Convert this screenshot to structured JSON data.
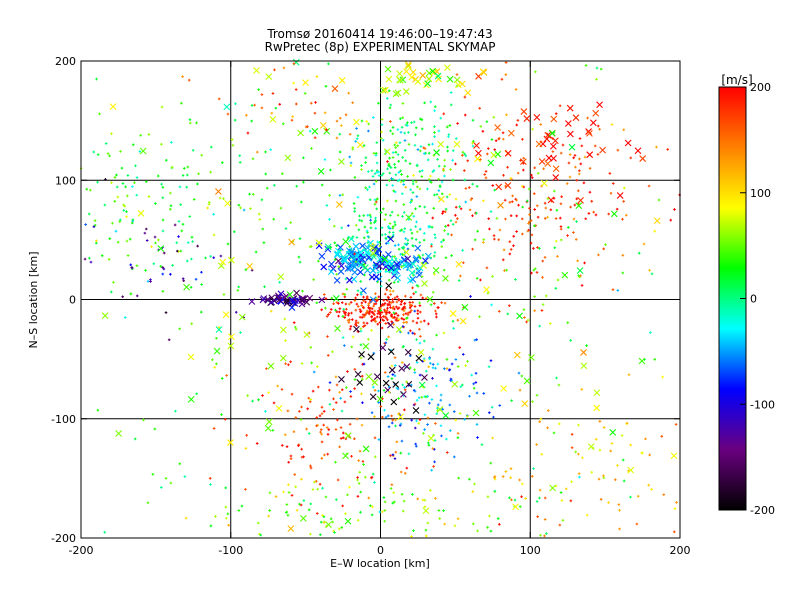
{
  "chart_data": {
    "type": "scatter",
    "title": "Tromsø 20160414 19:46:00–19:47:43",
    "subtitle": "RwPretec (8p) EXPERIMENTAL SKYMAP",
    "xlabel": "E–W location [km]",
    "ylabel": "N–S location [km]",
    "xlim": [
      -200,
      200
    ],
    "ylim": [
      -200,
      200
    ],
    "x_ticks": [
      "-200",
      "-100",
      "0",
      "100",
      "200"
    ],
    "y_ticks": [
      "-200",
      "-100",
      "0",
      "100",
      "200"
    ],
    "grid": true,
    "grid_lines": [
      -100,
      0,
      100
    ],
    "colorbar": {
      "label": "[m/s]",
      "min": -200,
      "max": 200,
      "ticks": [
        "-200",
        "-100",
        "0",
        "100",
        "200"
      ],
      "colormap": [
        "#000000",
        "#6a0080",
        "#0000ff",
        "#00ffff",
        "#00ff00",
        "#ffff00",
        "#ff8000",
        "#ff0000"
      ]
    },
    "clusters": [
      {
        "cx": 0,
        "cy": -10,
        "sx": 18,
        "sy": 8,
        "v": 190,
        "n": 260,
        "marker": "plus"
      },
      {
        "cx": 5,
        "cy": 45,
        "sx": 20,
        "sy": 20,
        "v": 10,
        "n": 220,
        "marker": "plus"
      },
      {
        "cx": 15,
        "cy": 120,
        "sx": 22,
        "sy": 25,
        "v": 10,
        "n": 200,
        "marker": "plus"
      },
      {
        "cx": -20,
        "cy": 35,
        "sx": 8,
        "sy": 6,
        "v": -50,
        "n": 60,
        "marker": "x"
      },
      {
        "cx": 5,
        "cy": 30,
        "sx": 12,
        "sy": 8,
        "v": -60,
        "n": 70,
        "marker": "x"
      },
      {
        "cx": 100,
        "cy": 80,
        "sx": 40,
        "sy": 40,
        "v": 175,
        "n": 230,
        "marker": "plus"
      },
      {
        "cx": 110,
        "cy": 130,
        "sx": 30,
        "sy": 20,
        "v": 180,
        "n": 45,
        "marker": "x"
      },
      {
        "cx": -150,
        "cy": 80,
        "sx": 40,
        "sy": 40,
        "v": 30,
        "n": 150,
        "marker": "plus"
      },
      {
        "cx": -150,
        "cy": 30,
        "sx": 30,
        "sy": 25,
        "v": -120,
        "n": 40,
        "marker": "plus"
      },
      {
        "cx": -60,
        "cy": 0,
        "sx": 12,
        "sy": 2,
        "v": -140,
        "n": 45,
        "marker": "x"
      },
      {
        "cx": -30,
        "cy": -110,
        "sx": 30,
        "sy": 30,
        "v": 170,
        "n": 140,
        "marker": "plus"
      },
      {
        "cx": 30,
        "cy": -80,
        "sx": 25,
        "sy": 25,
        "v": -60,
        "n": 130,
        "marker": "plus"
      },
      {
        "cx": 0,
        "cy": -60,
        "sx": 15,
        "sy": 20,
        "v": -200,
        "n": 25,
        "marker": "x"
      },
      {
        "cx": -20,
        "cy": -180,
        "sx": 55,
        "sy": 20,
        "v": 60,
        "n": 120,
        "marker": "plus"
      },
      {
        "cx": 130,
        "cy": -150,
        "sx": 40,
        "sy": 35,
        "v": 120,
        "n": 90,
        "marker": "plus"
      },
      {
        "cx": 0,
        "cy": 0,
        "sx": 110,
        "sy": 110,
        "v": 40,
        "n": 380,
        "marker": "plus"
      },
      {
        "cx": 0,
        "cy": 0,
        "sx": 110,
        "sy": 110,
        "v": 60,
        "n": 140,
        "marker": "x"
      },
      {
        "cx": 20,
        "cy": 185,
        "sx": 25,
        "sy": 8,
        "v": 80,
        "n": 40,
        "marker": "x"
      },
      {
        "cx": -60,
        "cy": 160,
        "sx": 30,
        "sy": 20,
        "v": 150,
        "n": 40,
        "marker": "plus"
      }
    ]
  }
}
